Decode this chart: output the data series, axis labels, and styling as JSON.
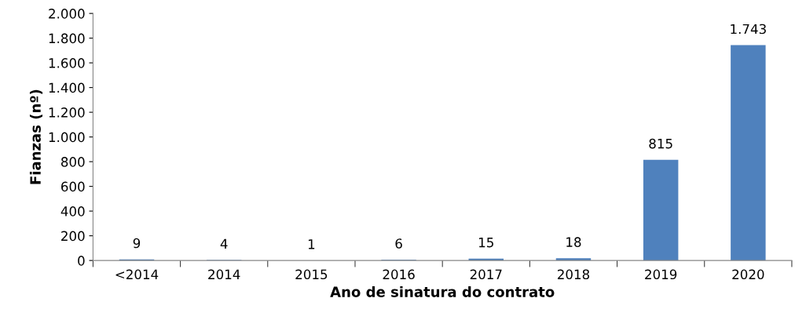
{
  "chart_data": {
    "type": "bar",
    "xlabel": "Ano de sinatura do contrato",
    "ylabel": "Fianzas (nº)",
    "categories": [
      "<2014",
      "2014",
      "2015",
      "2016",
      "2017",
      "2018",
      "2019",
      "2020"
    ],
    "values": [
      9,
      4,
      1,
      6,
      15,
      18,
      815,
      1743
    ],
    "value_labels": [
      "9",
      "4",
      "1",
      "6",
      "15",
      "18",
      "815",
      "1.743"
    ],
    "color": "#4f81bd",
    "ylim": [
      0,
      2000
    ],
    "yticks": [
      0,
      200,
      400,
      600,
      800,
      {
        "value": 1000,
        "label": "1.000"
      },
      {
        "value": 1200,
        "label": "1.200"
      },
      {
        "value": 1400,
        "label": "1.400"
      },
      {
        "value": 1600,
        "label": "1.600"
      },
      {
        "value": 1800,
        "label": "1.800"
      },
      {
        "value": 2000,
        "label": "2.000"
      }
    ],
    "grid": false,
    "legend": false
  }
}
